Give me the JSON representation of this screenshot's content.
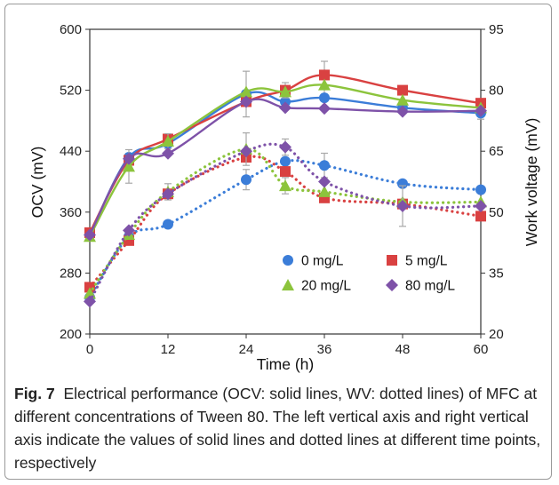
{
  "colors": {
    "0 mg/L": "#3b7dd8",
    "5 mg/L": "#d94141",
    "20 mg/L": "#8cc43c",
    "80 mg/L": "#7e52a8"
  },
  "caption": {
    "label": "Fig. 7",
    "text": "Electrical performance (OCV: solid lines, WV: dotted lines) of MFC at different concentrations of Tween 80. The left vertical axis and right vertical axis indicate the values of solid lines and dotted lines at different time points, respectively"
  },
  "chart_data": {
    "type": "line",
    "xlabel": "Time (h)",
    "ylabel_left": "OCV (mV)",
    "ylabel_right": "Work voltage (mV)",
    "xlim": [
      0,
      60
    ],
    "xticks": [
      0,
      12,
      24,
      36,
      48,
      60
    ],
    "ylim_left": [
      200,
      600
    ],
    "yticks_left": [
      200,
      280,
      360,
      440,
      520,
      600
    ],
    "ylim_right": [
      20,
      95
    ],
    "yticks_right": [
      20,
      35,
      50,
      65,
      80,
      95
    ],
    "grid": false,
    "legend_position": "bottom-right inside",
    "x": [
      0,
      6,
      12,
      24,
      30,
      36,
      48,
      60
    ],
    "series": [
      {
        "name": "0 mg/L",
        "marker": "circle",
        "axis": "left",
        "line": "solid",
        "values": [
          330,
          432,
          450,
          515,
          505,
          510,
          497,
          490
        ],
        "errors": [
          8,
          5,
          12,
          30,
          10,
          15,
          6,
          8
        ]
      },
      {
        "name": "5 mg/L",
        "marker": "square",
        "axis": "left",
        "line": "solid",
        "values": [
          333,
          428,
          456,
          505,
          520,
          540,
          520,
          503
        ],
        "errors": [
          0,
          0,
          0,
          0,
          10,
          18,
          0,
          0
        ]
      },
      {
        "name": "20 mg/L",
        "marker": "triangle",
        "axis": "left",
        "line": "solid",
        "values": [
          328,
          420,
          453,
          518,
          518,
          527,
          507,
          497
        ],
        "errors": [
          0,
          22,
          10,
          0,
          0,
          0,
          0,
          0
        ]
      },
      {
        "name": "80 mg/L",
        "marker": "diamond",
        "axis": "left",
        "line": "solid",
        "values": [
          330,
          430,
          437,
          505,
          497,
          496,
          492,
          493
        ],
        "errors": [
          0,
          0,
          0,
          0,
          0,
          0,
          0,
          0
        ]
      },
      {
        "name": "0 mg/L",
        "marker": "circle",
        "axis": "right",
        "line": "dotted",
        "values": [
          29,
          44,
          47,
          58,
          62.5,
          61.5,
          57,
          55.5
        ],
        "errors": [
          0,
          0,
          0,
          2.5,
          0,
          3,
          0,
          0
        ]
      },
      {
        "name": "5 mg/L",
        "marker": "square",
        "axis": "right",
        "line": "dotted",
        "values": [
          31.5,
          43,
          54.5,
          63.5,
          60,
          53.5,
          52,
          49
        ],
        "errors": [
          0,
          0,
          0,
          0,
          0,
          0,
          0,
          0
        ]
      },
      {
        "name": "20 mg/L",
        "marker": "triangle",
        "axis": "right",
        "line": "dotted",
        "values": [
          30,
          44.5,
          55,
          65.5,
          56.5,
          55,
          52.5,
          52.5
        ],
        "errors": [
          0,
          0,
          2,
          4,
          2,
          0,
          0,
          0
        ]
      },
      {
        "name": "80 mg/L",
        "marker": "diamond",
        "axis": "right",
        "line": "dotted",
        "values": [
          28,
          45.5,
          54.5,
          65,
          66,
          57.5,
          51.5,
          51.5
        ],
        "errors": [
          0,
          0,
          0,
          0,
          2,
          0,
          5,
          0
        ]
      }
    ]
  }
}
